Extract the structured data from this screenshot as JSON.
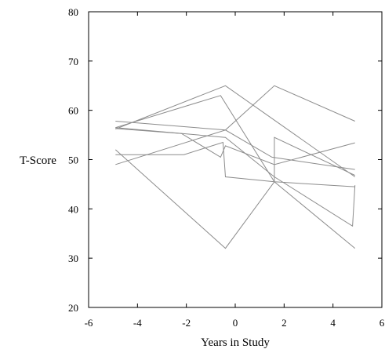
{
  "chart_data": {
    "type": "line",
    "title": "",
    "xlabel": "Years in Study",
    "ylabel": "T-Score",
    "xlim": [
      -6,
      6
    ],
    "ylim": [
      20,
      80
    ],
    "xticks": [
      -6,
      -4,
      -2,
      0,
      2,
      4,
      6
    ],
    "yticks": [
      20,
      30,
      40,
      50,
      60,
      70,
      80
    ],
    "xtick_labels": [
      "-6",
      "-4",
      "-2",
      "0",
      "2",
      "4",
      "6"
    ],
    "ytick_labels": [
      "20",
      "30",
      "40",
      "50",
      "60",
      "70",
      "80"
    ],
    "grid": false,
    "legend": "none",
    "line_color": "#8c8c8c",
    "series": [
      {
        "x": [
          -4.9,
          -0.4,
          1.6,
          4.9
        ],
        "y": [
          56.2,
          65.0,
          58.0,
          46.5
        ]
      },
      {
        "x": [
          -4.9,
          -0.6,
          1.6,
          4.9
        ],
        "y": [
          56.5,
          63.0,
          45.5,
          32.0
        ]
      },
      {
        "x": [
          -4.9,
          -0.4,
          1.6,
          4.9
        ],
        "y": [
          49.0,
          56.0,
          65.0,
          57.8
        ]
      },
      {
        "x": [
          -4.9,
          -0.4,
          1.5,
          4.9
        ],
        "y": [
          57.8,
          56.0,
          50.5,
          48.0
        ]
      },
      {
        "x": [
          -4.9,
          -2.1,
          -0.5,
          -0.4,
          1.6,
          4.9
        ],
        "y": [
          51.0,
          51.0,
          53.5,
          46.5,
          45.5,
          44.5
        ]
      },
      {
        "x": [
          -4.9,
          -0.4,
          1.6,
          1.6,
          4.9
        ],
        "y": [
          52.0,
          32.0,
          45.5,
          54.5,
          46.8
        ]
      },
      {
        "x": [
          -4.9,
          -2.2,
          -0.6,
          -0.4,
          1.6,
          4.9
        ],
        "y": [
          56.3,
          55.3,
          50.5,
          52.8,
          49.0,
          53.4
        ]
      },
      {
        "x": [
          -4.9,
          -0.4,
          1.6,
          4.8,
          4.9
        ],
        "y": [
          56.5,
          54.5,
          46.5,
          36.5,
          44.8
        ]
      }
    ]
  }
}
